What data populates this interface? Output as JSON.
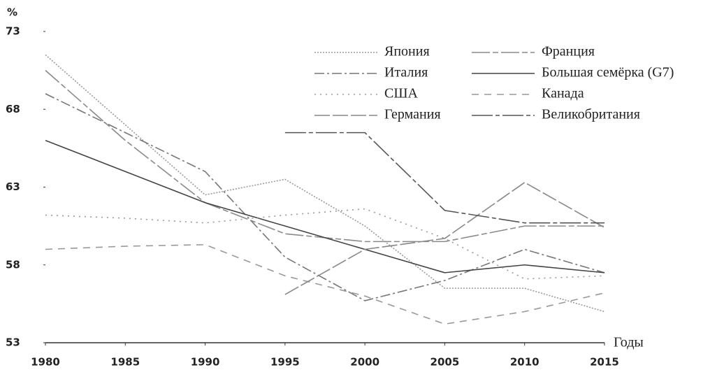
{
  "chart_data": {
    "type": "line",
    "y_label": "%",
    "x_label": "Годы",
    "x": [
      1980,
      1985,
      1990,
      1995,
      2000,
      2005,
      2010,
      2015
    ],
    "xlim": [
      1980,
      2015
    ],
    "xticks": [
      1980,
      1985,
      1990,
      1995,
      2000,
      2005,
      2010,
      2015
    ],
    "ylim": [
      53,
      73
    ],
    "yticks": [
      53,
      58,
      63,
      68,
      73
    ],
    "grid": false,
    "legend": "upper right",
    "series": [
      {
        "name": "Япония",
        "color": "#9a9a9a",
        "dash": "2 2",
        "values": [
          71.5,
          67,
          62.5,
          63.5,
          60.5,
          56.5,
          56.5,
          55
        ]
      },
      {
        "name": "Франция",
        "color": "#8a8a8a",
        "dash": "26 4 8 4",
        "values": [
          70.5,
          66,
          62,
          60,
          59.5,
          59.5,
          60.5,
          60.5
        ]
      },
      {
        "name": "Италия",
        "color": "#777777",
        "dash": "14 4 3 4",
        "values": [
          69,
          66.5,
          64,
          58.5,
          55.7,
          57,
          59,
          57.5
        ]
      },
      {
        "name": "Большая семёрка (G7)",
        "color": "#444444",
        "dash": "",
        "values": [
          66,
          64,
          62,
          60.5,
          59,
          57.5,
          58,
          57.5
        ]
      },
      {
        "name": "США",
        "color": "#999999",
        "dash": "2 6",
        "values": [
          61.2,
          61,
          60.7,
          61.2,
          61.6,
          59.7,
          57.1,
          57.3
        ]
      },
      {
        "name": "Канада",
        "color": "#999999",
        "dash": "10 8",
        "values": [
          59,
          59.2,
          59.3,
          57.3,
          56,
          54.2,
          55,
          56.2
        ]
      },
      {
        "name": "Германия",
        "color": "#888888",
        "dash": "22 4",
        "values": [
          null,
          null,
          null,
          56.1,
          59,
          59.7,
          63.3,
          60.4
        ]
      },
      {
        "name": "Великобритания",
        "color": "#555555",
        "dash": "30 4 6 4",
        "values": [
          null,
          null,
          null,
          66.5,
          66.5,
          61.5,
          60.7,
          60.7
        ]
      }
    ]
  }
}
